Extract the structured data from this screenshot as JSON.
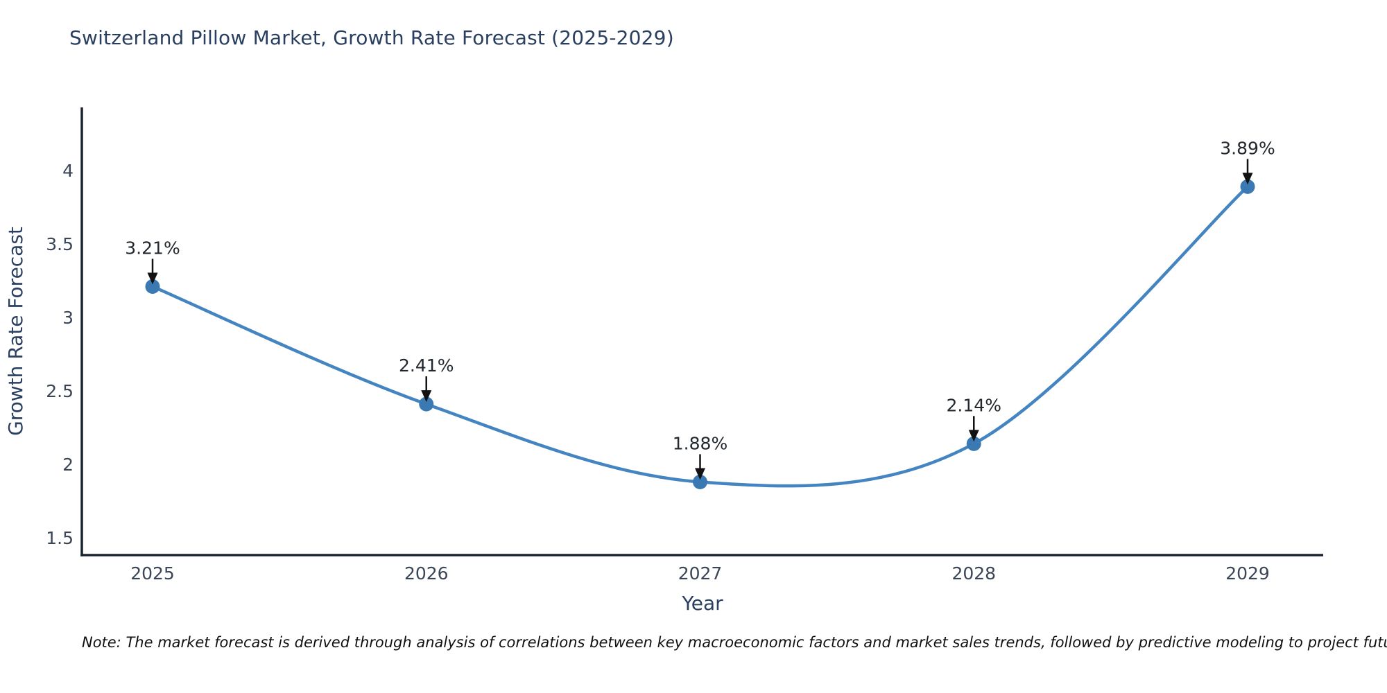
{
  "title": "Switzerland Pillow Market, Growth Rate Forecast (2025-2029)",
  "footnote": "Note: The market forecast is derived through analysis of correlations between key macroeconomic factors and market sales trends, followed by predictive modeling to project future sales",
  "chart_data": {
    "type": "line",
    "title": "Switzerland Pillow Market, Growth Rate Forecast (2025-2029)",
    "xlabel": "Year",
    "ylabel": "Growth Rate Forecast",
    "x": [
      2025,
      2026,
      2027,
      2028,
      2029
    ],
    "series": [
      {
        "name": "Growth Rate Forecast",
        "values": [
          3.21,
          2.41,
          1.88,
          2.14,
          3.89
        ]
      }
    ],
    "point_labels": [
      "3.21%",
      "2.41%",
      "1.88%",
      "2.14%",
      "3.89%"
    ],
    "yticks": [
      1.5,
      2.0,
      2.5,
      3.0,
      3.5,
      4.0
    ],
    "ylim": [
      1.38,
      4.43
    ],
    "line_shape": "spline",
    "grid": false,
    "legend": "none",
    "annotations_have_arrows": true,
    "colors": {
      "line": "#4485c1",
      "marker": "#3a79b2",
      "axis": "#1c2431",
      "tick_text": "#3a4556",
      "title_text": "#2a3f5f",
      "annotation_text": "#22282e",
      "arrow": "#121212",
      "background": "#ffffff"
    }
  }
}
